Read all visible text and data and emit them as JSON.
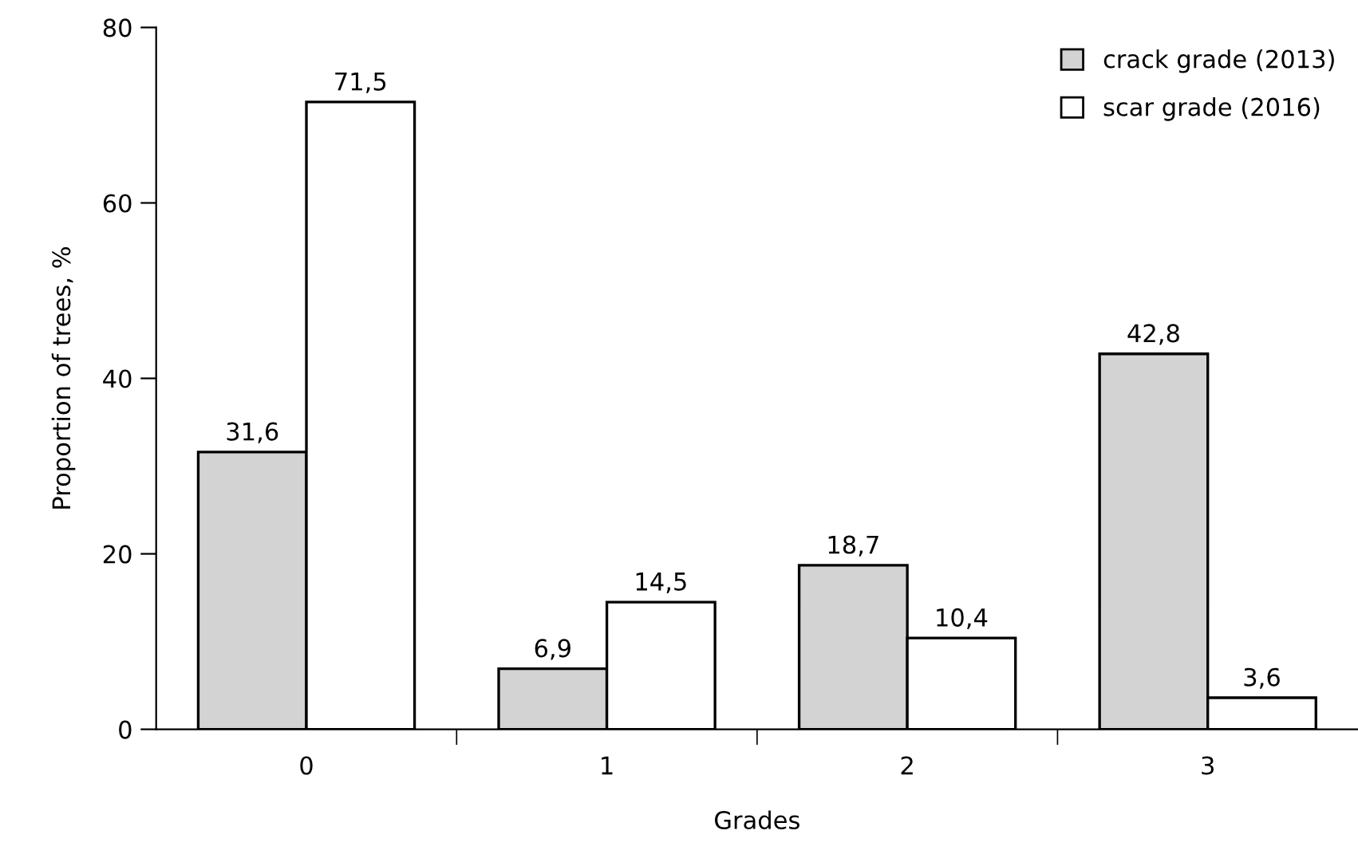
{
  "chart_data": {
    "type": "bar",
    "xlabel": "Grades",
    "ylabel": "Proportion of trees, %",
    "categories": [
      "0",
      "1",
      "2",
      "3"
    ],
    "series": [
      {
        "name": "crack grade (2013)",
        "color": "#d3d3d3",
        "values": [
          31.6,
          6.9,
          18.7,
          42.8
        ],
        "value_labels": [
          "31,6",
          "6,9",
          "18,7",
          "42,8"
        ]
      },
      {
        "name": "scar grade (2016)",
        "color": "#ffffff",
        "values": [
          71.5,
          14.5,
          10.4,
          3.6
        ],
        "value_labels": [
          "71,5",
          "14,5",
          "10,4",
          "3,6"
        ]
      }
    ],
    "ylim": [
      0,
      80
    ],
    "yticks": [
      0,
      20,
      40,
      60,
      80
    ],
    "grid": false,
    "legend": "top right"
  }
}
